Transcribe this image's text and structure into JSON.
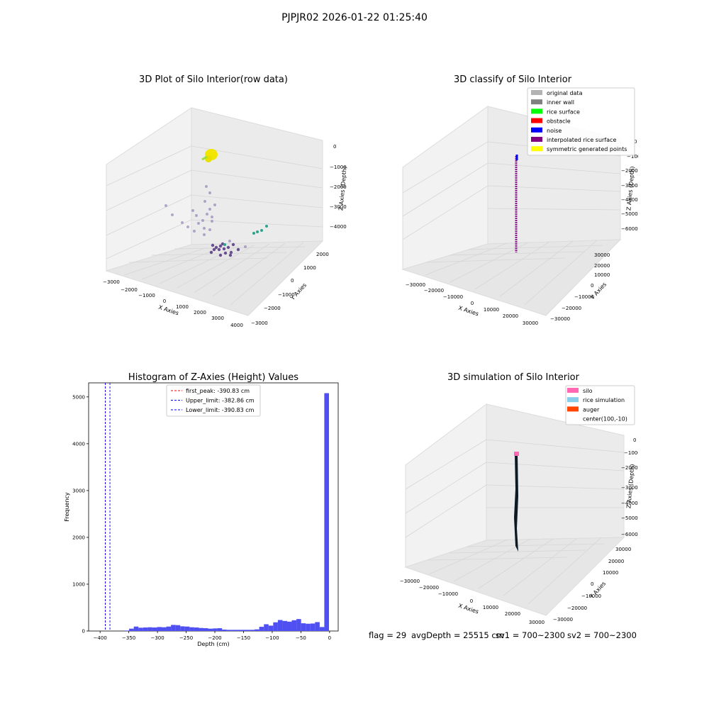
{
  "figure": {
    "suptitle": "PJPJR02 2026-01-22 01:25:40"
  },
  "panels": {
    "raw": {
      "title": "3D Plot of Silo Interior(row data)",
      "xlabel": "X Axies",
      "ylabel": "Y Axies",
      "zlabel": "Z Axies (Depth)",
      "xticks": [
        "−3000",
        "−2000",
        "−1000",
        "0",
        "1000",
        "2000",
        "3000",
        "4000"
      ],
      "yticks": [
        "−3000",
        "−2000",
        "−1000",
        "0",
        "1000",
        "2000"
      ],
      "zticks": [
        "0",
        "−1000",
        "−2000",
        "−3000",
        "−4000"
      ]
    },
    "classify": {
      "title": "3D classify of Silo Interior",
      "xlabel": "X Axies",
      "ylabel": "Y Axies",
      "zlabel": "Z Axies (Depth)",
      "xticks": [
        "−30000",
        "−20000",
        "−10000",
        "0",
        "10000",
        "20000",
        "30000"
      ],
      "yticks": [
        "−30000",
        "−20000",
        "−10000",
        "0",
        "10000",
        "20000",
        "30000"
      ],
      "zticks": [
        "0",
        "−10000",
        "−20000",
        "−30000",
        "−40000",
        "−50000",
        "−60000"
      ],
      "legend": [
        {
          "label": "original data",
          "color": "#b3b3b3"
        },
        {
          "label": "inner wall",
          "color": "#808080"
        },
        {
          "label": "rice surface",
          "color": "#00ff00"
        },
        {
          "label": "obstacle",
          "color": "#ff0000"
        },
        {
          "label": "noise",
          "color": "#0000ff"
        },
        {
          "label": "interpolated rice surface",
          "color": "#800080"
        },
        {
          "label": "symmetric generated points",
          "color": "#ffff00"
        }
      ]
    },
    "simulation": {
      "title": "3D simulation of Silo Interior",
      "xlabel": "X Axies",
      "ylabel": "Y Axies",
      "zlabel": "Z Axies (Depth)",
      "xticks": [
        "−30000",
        "−20000",
        "−10000",
        "0",
        "10000",
        "20000",
        "30000"
      ],
      "yticks": [
        "−30000",
        "−20000",
        "−10000",
        "0",
        "10000",
        "20000",
        "30000"
      ],
      "zticks": [
        "0",
        "−10000",
        "−20000",
        "−30000",
        "−40000",
        "−50000",
        "−60000"
      ],
      "legend": [
        {
          "label": "silo",
          "color": "#ff69b4"
        },
        {
          "label": "rice simulation",
          "color": "#87ceeb"
        },
        {
          "label": "auger",
          "color": "#ff4500"
        },
        {
          "label": "center(100,-10)",
          "color": ""
        }
      ]
    }
  },
  "status": {
    "flag": "flag = 29",
    "avg_depth": "avgDepth = 25515 cm",
    "sv1": "sv1 = 700~2300",
    "sv2": "sv2 = 700~2300"
  },
  "chart_data": [
    {
      "type": "scatter",
      "title": "3D Plot of Silo Interior(row data)",
      "xlabel": "X Axies",
      "ylabel": "Y Axies",
      "zlabel": "Z Axies (Depth)",
      "xlim": [
        -3000,
        4000
      ],
      "ylim": [
        -3000,
        2000
      ],
      "zlim": [
        -4500,
        0
      ]
    },
    {
      "type": "scatter",
      "title": "3D classify of Silo Interior",
      "xlabel": "X Axies",
      "ylabel": "Y Axies",
      "zlabel": "Z Axies (Depth)",
      "xlim": [
        -30000,
        30000
      ],
      "ylim": [
        -30000,
        30000
      ],
      "zlim": [
        -65000,
        0
      ],
      "series": [
        {
          "name": "original data"
        },
        {
          "name": "inner wall"
        },
        {
          "name": "rice surface"
        },
        {
          "name": "obstacle"
        },
        {
          "name": "noise"
        },
        {
          "name": "interpolated rice surface"
        },
        {
          "name": "symmetric generated points"
        }
      ]
    },
    {
      "type": "bar",
      "title": "Histogram of Z-Axies (Height) Values",
      "xlabel": "Depth (cm)",
      "ylabel": "Frequency",
      "xlim": [
        -420,
        15
      ],
      "ylim": [
        0,
        5300
      ],
      "xticks": [
        -400,
        -350,
        -300,
        -250,
        -200,
        -150,
        -100,
        -50,
        0
      ],
      "yticks": [
        0,
        1000,
        2000,
        3000,
        4000,
        5000
      ],
      "bin_width": 8.1,
      "bins": [
        {
          "start": -357.5,
          "count": 10
        },
        {
          "start": -349.4,
          "count": 50
        },
        {
          "start": -341.3,
          "count": 95
        },
        {
          "start": -333.2,
          "count": 70
        },
        {
          "start": -325.1,
          "count": 75
        },
        {
          "start": -317.0,
          "count": 80
        },
        {
          "start": -308.9,
          "count": 75
        },
        {
          "start": -300.8,
          "count": 85
        },
        {
          "start": -292.7,
          "count": 80
        },
        {
          "start": -284.6,
          "count": 95
        },
        {
          "start": -276.5,
          "count": 130
        },
        {
          "start": -268.4,
          "count": 125
        },
        {
          "start": -260.3,
          "count": 100
        },
        {
          "start": -252.2,
          "count": 95
        },
        {
          "start": -244.1,
          "count": 80
        },
        {
          "start": -236.0,
          "count": 75
        },
        {
          "start": -227.9,
          "count": 65
        },
        {
          "start": -219.8,
          "count": 60
        },
        {
          "start": -211.7,
          "count": 50
        },
        {
          "start": -203.6,
          "count": 55
        },
        {
          "start": -195.5,
          "count": 60
        },
        {
          "start": -187.4,
          "count": 30
        },
        {
          "start": -179.3,
          "count": 25
        },
        {
          "start": -171.2,
          "count": 25
        },
        {
          "start": -163.1,
          "count": 25
        },
        {
          "start": -155.0,
          "count": 25
        },
        {
          "start": -146.9,
          "count": 25
        },
        {
          "start": -138.8,
          "count": 25
        },
        {
          "start": -130.7,
          "count": 35
        },
        {
          "start": -122.6,
          "count": 90
        },
        {
          "start": -114.5,
          "count": 145
        },
        {
          "start": -106.4,
          "count": 115
        },
        {
          "start": -98.3,
          "count": 185
        },
        {
          "start": -90.2,
          "count": 235
        },
        {
          "start": -82.1,
          "count": 215
        },
        {
          "start": -74.0,
          "count": 200
        },
        {
          "start": -65.9,
          "count": 230
        },
        {
          "start": -57.8,
          "count": 255
        },
        {
          "start": -49.7,
          "count": 165
        },
        {
          "start": -41.6,
          "count": 155
        },
        {
          "start": -33.5,
          "count": 160
        },
        {
          "start": -25.4,
          "count": 190
        },
        {
          "start": -17.3,
          "count": 85
        },
        {
          "start": -9.2,
          "count": 5080
        }
      ],
      "vlines": [
        {
          "label": "first_peak: -390.83 cm",
          "x": -390.83,
          "color": "#ff0000"
        },
        {
          "label": "Upper_limit: -382.86 cm",
          "x": -382.86,
          "color": "#0000ff"
        },
        {
          "label": "Lower_limit: -390.83 cm",
          "x": -390.83,
          "color": "#0000ff"
        }
      ]
    },
    {
      "type": "scatter",
      "title": "3D simulation of Silo Interior",
      "xlabel": "X Axies",
      "ylabel": "Y Axies",
      "zlabel": "Z Axies (Depth)",
      "xlim": [
        -30000,
        30000
      ],
      "ylim": [
        -30000,
        30000
      ],
      "zlim": [
        -65000,
        0
      ],
      "series": [
        {
          "name": "silo"
        },
        {
          "name": "rice simulation"
        },
        {
          "name": "auger"
        },
        {
          "name": "center(100,-10)"
        }
      ]
    }
  ]
}
